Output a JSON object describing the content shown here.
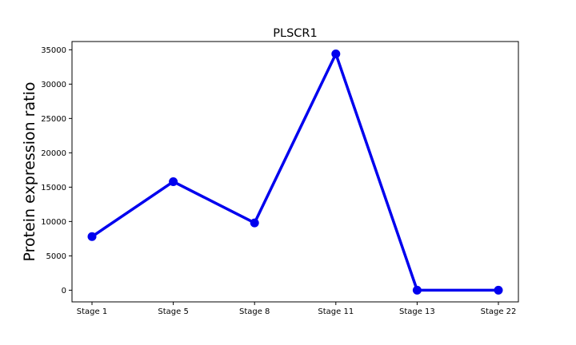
{
  "chart_data": {
    "type": "line",
    "title": "PLSCR1",
    "xlabel": "",
    "ylabel": "Protein expression ratio",
    "categories": [
      "Stage 1",
      "Stage 5",
      "Stage 8",
      "Stage 11",
      "Stage 13",
      "Stage 22"
    ],
    "series": [
      {
        "values": [
          7800,
          15800,
          9800,
          34400,
          0,
          0
        ],
        "color": "#0000ee"
      }
    ],
    "ylim": [
      -1700,
      36200
    ],
    "yticks": [
      0,
      5000,
      10000,
      15000,
      20000,
      25000,
      30000,
      35000
    ],
    "grid": false,
    "legend": "none"
  }
}
